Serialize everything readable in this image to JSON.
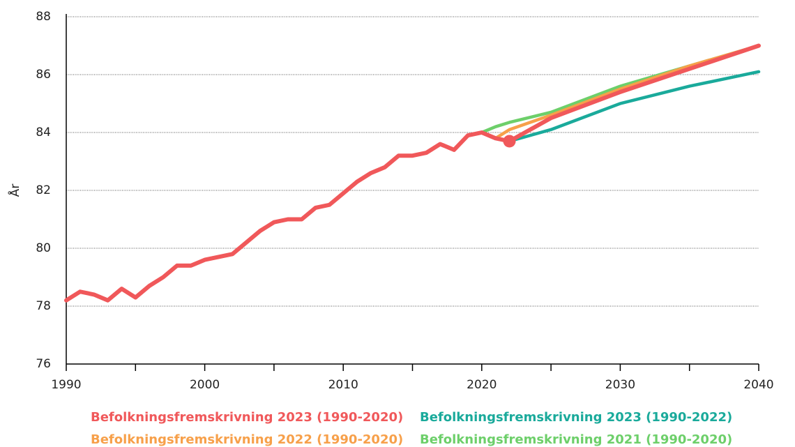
{
  "chart_data": {
    "type": "line",
    "y_label": "År",
    "x": [
      1990,
      1991,
      1992,
      1993,
      1994,
      1995,
      1996,
      1997,
      1998,
      1999,
      2000,
      2001,
      2002,
      2003,
      2004,
      2005,
      2006,
      2007,
      2008,
      2009,
      2010,
      2011,
      2012,
      2013,
      2014,
      2015,
      2016,
      2017,
      2018,
      2019,
      2020,
      2021,
      2022,
      2025,
      2030,
      2035,
      2040
    ],
    "series": [
      {
        "name": "Befolkningsfremskrivning 2023 (1990-2020)",
        "color": "#f0585a",
        "values": [
          78.2,
          78.5,
          78.4,
          78.2,
          78.6,
          78.3,
          78.7,
          79.0,
          79.4,
          79.4,
          79.6,
          79.7,
          79.8,
          80.2,
          80.6,
          80.9,
          81.0,
          81.0,
          81.4,
          81.5,
          81.9,
          82.3,
          82.6,
          82.8,
          83.2,
          83.2,
          83.3,
          83.6,
          83.4,
          83.9,
          84.0,
          83.8,
          83.7,
          84.5,
          85.4,
          86.2,
          87.0
        ]
      },
      {
        "name": "Befolkningsfremskrivning 2023 (1990-2022)",
        "color": "#1aaa9b",
        "values": [
          null,
          null,
          null,
          null,
          null,
          null,
          null,
          null,
          null,
          null,
          null,
          null,
          null,
          null,
          null,
          null,
          null,
          null,
          null,
          null,
          null,
          null,
          null,
          null,
          null,
          null,
          null,
          null,
          null,
          null,
          null,
          null,
          83.7,
          84.1,
          85.0,
          85.6,
          86.1
        ]
      },
      {
        "name": "Befolkningsfremskrivning 2022 (1990-2020)",
        "color": "#f7a04a",
        "values": [
          null,
          null,
          null,
          null,
          null,
          null,
          null,
          null,
          null,
          null,
          null,
          null,
          null,
          null,
          null,
          null,
          null,
          null,
          null,
          null,
          null,
          null,
          null,
          null,
          null,
          null,
          null,
          null,
          null,
          null,
          null,
          83.8,
          84.1,
          84.6,
          85.5,
          86.3,
          87.0
        ]
      },
      {
        "name": "Befolkningsfremskrivning 2021 (1990-2020)",
        "color": "#6dcf6a",
        "values": [
          null,
          null,
          null,
          null,
          null,
          null,
          null,
          null,
          null,
          null,
          null,
          null,
          null,
          null,
          null,
          null,
          null,
          null,
          null,
          null,
          null,
          null,
          null,
          null,
          null,
          null,
          null,
          null,
          null,
          null,
          84.0,
          84.2,
          84.35,
          84.7,
          85.6,
          86.3,
          87.0
        ]
      }
    ],
    "point": {
      "x": 2022,
      "y": 83.7
    },
    "xlim": [
      1990,
      2040
    ],
    "xticks": [
      1990,
      2000,
      2010,
      2020,
      2030,
      2040
    ],
    "xminorticks": [
      1995,
      2005,
      2015,
      2025,
      2035
    ],
    "ylim": [
      76,
      88
    ],
    "yticks": [
      76,
      78,
      80,
      82,
      84,
      86,
      88
    ],
    "grid": true
  }
}
